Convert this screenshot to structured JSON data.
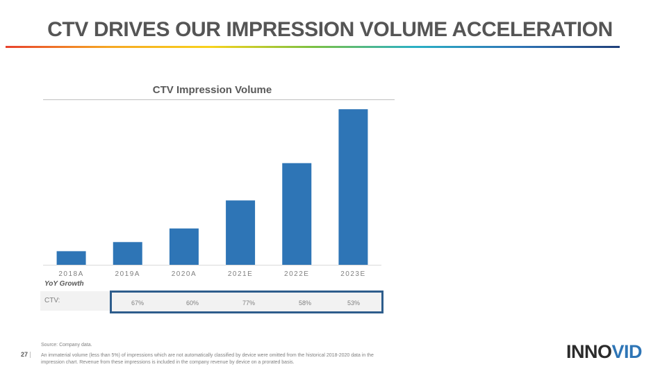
{
  "slide": {
    "title": "CTV DRIVES OUR IMPRESSION VOLUME ACCELERATION",
    "rule_colors": [
      "#e8412c",
      "#f5a623",
      "#f8d21c",
      "#7cc142",
      "#2ab0c5",
      "#2e75b6",
      "#1f3f7a"
    ],
    "page_number": "27",
    "logo": {
      "text_main": "INNO",
      "text_accent": "VID",
      "accent_color": "#2e75b6"
    }
  },
  "chart_data": {
    "type": "bar",
    "title": "CTV Impression Volume",
    "categories": [
      "2018A",
      "2019A",
      "2020A",
      "2021E",
      "2022E",
      "2023E"
    ],
    "values": [
      1.0,
      1.67,
      2.67,
      4.73,
      7.47,
      11.43
    ],
    "bar_color": "#2e75b6",
    "ylim": [
      0,
      12
    ],
    "grid": false
  },
  "growth": {
    "heading": "YoY Growth",
    "row_label": "CTV:",
    "values": [
      "67%",
      "60%",
      "77%",
      "58%",
      "53%"
    ],
    "highlight_color": "#2e5d8c"
  },
  "notes": {
    "source": "Source: Company data.",
    "footnote": "An immaterial volume (less than 5%) of impressions which are not automatically classified by device were omitted from the historical 2018-2020 data in the impression chart. Revenue from these impressions is included in the company revenue by device on a prorated basis."
  }
}
